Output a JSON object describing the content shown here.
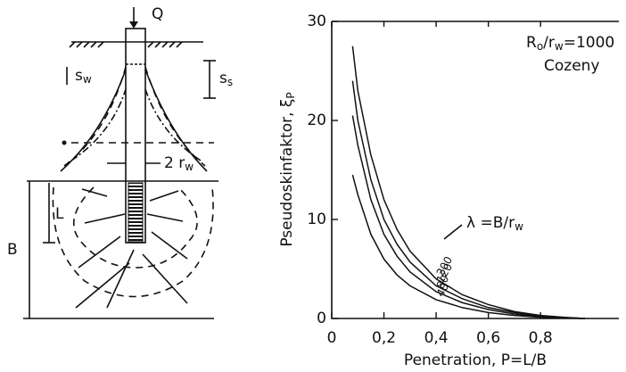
{
  "diagram": {
    "load": "Q",
    "s_w": [
      "s",
      "w"
    ],
    "s_s": [
      "s",
      "s"
    ],
    "radius": [
      "2 r",
      "w"
    ],
    "length": "L",
    "depth": "B"
  },
  "chart_data": {
    "type": "line",
    "ylabel": [
      "Pseudoskinfaktor, ξ",
      "P"
    ],
    "xlabel": "Penetration, P=L/B",
    "ratio_label": [
      "R",
      "o",
      "/r",
      "w",
      "=1000"
    ],
    "method_label": "Cozeny",
    "lambda_label": [
      "λ =B/r",
      "w"
    ],
    "x": [
      0.08,
      0.1,
      0.15,
      0.2,
      0.25,
      0.3,
      0.4,
      0.5,
      0.6,
      0.7,
      0.8,
      0.9,
      0.97
    ],
    "series": [
      {
        "name": "200",
        "color": "#111",
        "values": [
          27.5,
          23,
          16.5,
          12,
          9,
          6.8,
          4,
          2.4,
          1.4,
          0.7,
          0.3,
          0.1,
          0
        ]
      },
      {
        "name": "120",
        "color": "#111",
        "values": [
          24,
          20,
          14,
          10,
          7.5,
          5.7,
          3.3,
          2,
          1.1,
          0.6,
          0.25,
          0.08,
          0
        ]
      },
      {
        "name": "80",
        "color": "#111",
        "values": [
          20.5,
          17.5,
          12,
          8.5,
          6.3,
          4.7,
          2.7,
          1.6,
          0.9,
          0.45,
          0.2,
          0.05,
          0
        ]
      },
      {
        "name": "40",
        "color": "#111",
        "values": [
          14.5,
          12.5,
          8.5,
          6,
          4.4,
          3.3,
          1.9,
          1.1,
          0.6,
          0.3,
          0.12,
          0.03,
          0
        ]
      }
    ],
    "xlim": [
      0,
      1.1
    ],
    "ylim": [
      0,
      30
    ],
    "xticks": [
      0,
      {
        "value": 0.2,
        "label": "0,2"
      },
      {
        "value": 0.4,
        "label": "0,4"
      },
      {
        "value": 0.6,
        "label": "0,6"
      },
      {
        "value": 0.8,
        "label": "0,8"
      }
    ],
    "yticks": [
      0,
      10,
      20,
      30
    ]
  }
}
